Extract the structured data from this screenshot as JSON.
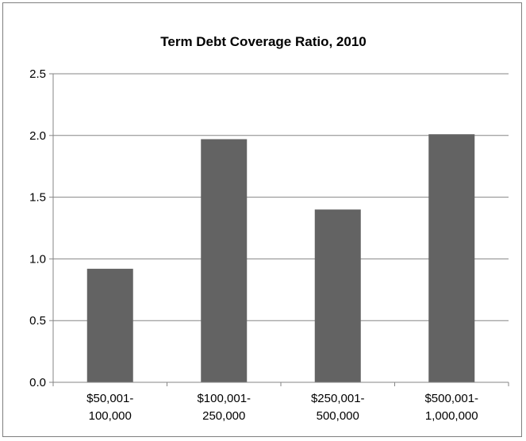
{
  "chart_data": {
    "type": "bar",
    "title": "Term Debt Coverage Ratio, 2010",
    "xlabel": "",
    "ylabel": "",
    "categories": [
      [
        "$50,001-",
        "100,000"
      ],
      [
        "$100,001-",
        "250,000"
      ],
      [
        "$250,001-",
        "500,000"
      ],
      [
        "$500,001-",
        "1,000,000"
      ]
    ],
    "values": [
      0.92,
      1.97,
      1.4,
      2.01
    ],
    "ylim": [
      0,
      2.5
    ],
    "yticks": [
      "0.0",
      "0.5",
      "1.0",
      "1.5",
      "2.0",
      "2.5"
    ],
    "grid": true,
    "legend": "none",
    "colors": {
      "bar": "#636363",
      "grid": "#868686",
      "axis": "#868686"
    }
  }
}
